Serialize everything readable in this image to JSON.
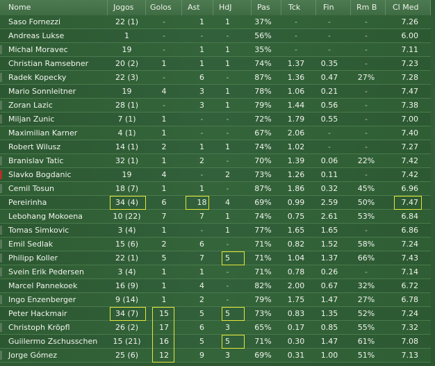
{
  "table": {
    "columns": [
      {
        "key": "name",
        "label": "Nome"
      },
      {
        "key": "jogos",
        "label": "Jogos"
      },
      {
        "key": "golos",
        "label": "Golos"
      },
      {
        "key": "ast",
        "label": "Ast"
      },
      {
        "key": "hdj",
        "label": "HdJ"
      },
      {
        "key": "pas",
        "label": "Pas"
      },
      {
        "key": "tck",
        "label": "Tck"
      },
      {
        "key": "fin",
        "label": "Fin"
      },
      {
        "key": "rmb",
        "label": "Rm B"
      },
      {
        "key": "clmed",
        "label": "Cl Med"
      }
    ],
    "rows": [
      {
        "name": "Saso Fornezzi",
        "jogos": "22 (1)",
        "golos": "-",
        "ast": "1",
        "hdj": "1",
        "pas": "37%",
        "tck": "-",
        "fin": "-",
        "rmb": "-",
        "clmed": "7.26",
        "marker": "none"
      },
      {
        "name": "Andreas Lukse",
        "jogos": "1",
        "golos": "-",
        "ast": "-",
        "hdj": "-",
        "pas": "56%",
        "tck": "-",
        "fin": "-",
        "rmb": "-",
        "clmed": "6.00",
        "marker": "none"
      },
      {
        "name": "Michal Moravec",
        "jogos": "19",
        "golos": "-",
        "ast": "1",
        "hdj": "1",
        "pas": "35%",
        "tck": "-",
        "fin": "-",
        "rmb": "-",
        "clmed": "7.11",
        "marker": "gray"
      },
      {
        "name": "Christian Ramsebner",
        "jogos": "20 (2)",
        "golos": "1",
        "ast": "1",
        "hdj": "1",
        "pas": "74%",
        "tck": "1.37",
        "fin": "0.35",
        "rmb": "-",
        "clmed": "7.23",
        "marker": "none"
      },
      {
        "name": "Radek Kopecky",
        "jogos": "22 (3)",
        "golos": "-",
        "ast": "6",
        "hdj": "-",
        "pas": "87%",
        "tck": "1.36",
        "fin": "0.47",
        "rmb": "27%",
        "clmed": "7.28",
        "marker": "gray"
      },
      {
        "name": "Mario Sonnleitner",
        "jogos": "19",
        "golos": "4",
        "ast": "3",
        "hdj": "1",
        "pas": "78%",
        "tck": "1.06",
        "fin": "0.21",
        "rmb": "-",
        "clmed": "7.47",
        "marker": "none"
      },
      {
        "name": "Zoran Lazic",
        "jogos": "28 (1)",
        "golos": "-",
        "ast": "3",
        "hdj": "1",
        "pas": "79%",
        "tck": "1.44",
        "fin": "0.56",
        "rmb": "-",
        "clmed": "7.38",
        "marker": "gray"
      },
      {
        "name": "Miljan Zunic",
        "jogos": "7 (1)",
        "golos": "1",
        "ast": "-",
        "hdj": "-",
        "pas": "72%",
        "tck": "1.79",
        "fin": "0.55",
        "rmb": "-",
        "clmed": "7.00",
        "marker": "gray"
      },
      {
        "name": "Maximilian Karner",
        "jogos": "4 (1)",
        "golos": "1",
        "ast": "-",
        "hdj": "-",
        "pas": "67%",
        "tck": "2.06",
        "fin": "-",
        "rmb": "-",
        "clmed": "7.40",
        "marker": "none"
      },
      {
        "name": "Robert Wilusz",
        "jogos": "14 (1)",
        "golos": "2",
        "ast": "1",
        "hdj": "1",
        "pas": "74%",
        "tck": "1.02",
        "fin": "-",
        "rmb": "-",
        "clmed": "7.27",
        "marker": "none"
      },
      {
        "name": "Branislav Tatic",
        "jogos": "32 (1)",
        "golos": "1",
        "ast": "2",
        "hdj": "-",
        "pas": "70%",
        "tck": "1.39",
        "fin": "0.06",
        "rmb": "22%",
        "clmed": "7.42",
        "marker": "gray"
      },
      {
        "name": "Slavko Bogdanic",
        "jogos": "19",
        "golos": "4",
        "ast": "-",
        "hdj": "2",
        "pas": "73%",
        "tck": "1.26",
        "fin": "0.11",
        "rmb": "-",
        "clmed": "7.42",
        "marker": "red"
      },
      {
        "name": "Cemil Tosun",
        "jogos": "18 (7)",
        "golos": "1",
        "ast": "1",
        "hdj": "-",
        "pas": "87%",
        "tck": "1.86",
        "fin": "0.32",
        "rmb": "45%",
        "clmed": "6.96",
        "marker": "gray"
      },
      {
        "name": "Pereirinha",
        "jogos": "34 (4)",
        "golos": "6",
        "ast": "18",
        "hdj": "4",
        "pas": "69%",
        "tck": "0.99",
        "fin": "2.59",
        "rmb": "50%",
        "clmed": "7.47",
        "marker": "none"
      },
      {
        "name": "Lebohang Mokoena",
        "jogos": "10 (22)",
        "golos": "7",
        "ast": "7",
        "hdj": "1",
        "pas": "74%",
        "tck": "0.75",
        "fin": "2.61",
        "rmb": "53%",
        "clmed": "6.84",
        "marker": "none"
      },
      {
        "name": "Tomas Simkovic",
        "jogos": "3 (4)",
        "golos": "1",
        "ast": "-",
        "hdj": "1",
        "pas": "77%",
        "tck": "1.65",
        "fin": "1.65",
        "rmb": "-",
        "clmed": "6.86",
        "marker": "gray"
      },
      {
        "name": "Emil Sedlak",
        "jogos": "15 (6)",
        "golos": "2",
        "ast": "6",
        "hdj": "-",
        "pas": "71%",
        "tck": "0.82",
        "fin": "1.52",
        "rmb": "58%",
        "clmed": "7.24",
        "marker": "gray"
      },
      {
        "name": "Philipp Koller",
        "jogos": "22 (1)",
        "golos": "5",
        "ast": "7",
        "hdj": "5",
        "pas": "71%",
        "tck": "1.04",
        "fin": "1.37",
        "rmb": "66%",
        "clmed": "7.43",
        "marker": "gray"
      },
      {
        "name": "Svein Erik Pedersen",
        "jogos": "3 (4)",
        "golos": "1",
        "ast": "1",
        "hdj": "-",
        "pas": "71%",
        "tck": "0.78",
        "fin": "0.26",
        "rmb": "-",
        "clmed": "7.14",
        "marker": "gray"
      },
      {
        "name": "Marcel Pannekoek",
        "jogos": "16 (9)",
        "golos": "1",
        "ast": "4",
        "hdj": "-",
        "pas": "82%",
        "tck": "2.00",
        "fin": "0.67",
        "rmb": "32%",
        "clmed": "6.72",
        "marker": "none"
      },
      {
        "name": "Ingo Enzenberger",
        "jogos": "9 (14)",
        "golos": "1",
        "ast": "2",
        "hdj": "-",
        "pas": "79%",
        "tck": "1.75",
        "fin": "1.47",
        "rmb": "27%",
        "clmed": "6.78",
        "marker": "gray"
      },
      {
        "name": "Peter Hackmair",
        "jogos": "34 (7)",
        "golos": "15",
        "ast": "5",
        "hdj": "5",
        "pas": "73%",
        "tck": "0.83",
        "fin": "1.35",
        "rmb": "52%",
        "clmed": "7.24",
        "marker": "none"
      },
      {
        "name": "Christoph Kröpfl",
        "jogos": "26 (2)",
        "golos": "17",
        "ast": "6",
        "hdj": "3",
        "pas": "65%",
        "tck": "0.17",
        "fin": "0.85",
        "rmb": "55%",
        "clmed": "7.32",
        "marker": "gray"
      },
      {
        "name": "Guiilermo Zschusschen",
        "jogos": "15 (21)",
        "golos": "16",
        "ast": "5",
        "hdj": "5",
        "pas": "71%",
        "tck": "0.30",
        "fin": "1.47",
        "rmb": "61%",
        "clmed": "7.08",
        "marker": "none"
      },
      {
        "name": "Jorge Gómez",
        "jogos": "25 (6)",
        "golos": "12",
        "ast": "9",
        "hdj": "3",
        "pas": "69%",
        "tck": "0.31",
        "fin": "1.00",
        "rmb": "51%",
        "clmed": "7.13",
        "marker": "gray"
      }
    ],
    "highlights": [
      {
        "row": 13,
        "col": "jogos"
      },
      {
        "row": 13,
        "col": "ast"
      },
      {
        "row": 13,
        "col": "clmed"
      },
      {
        "row": 17,
        "col": "hdj"
      },
      {
        "row": 21,
        "col": "jogos"
      },
      {
        "row": 21,
        "col": "hdj"
      },
      {
        "row": 23,
        "col": "hdj"
      },
      {
        "row_start": 21,
        "row_end": 24,
        "col": "golos"
      }
    ],
    "highlight_color": "#e6e83a"
  }
}
